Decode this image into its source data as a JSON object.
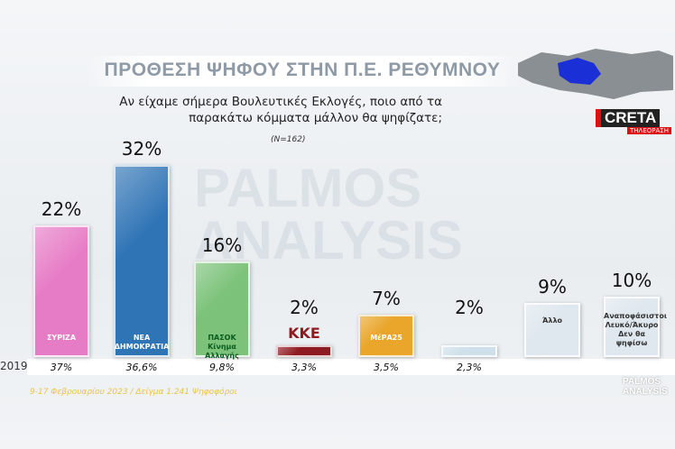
{
  "chart_data": {
    "type": "bar",
    "title": "ΠΡΟΘΕΣΗ ΨΗΦΟΥ ΣΤΗΝ Π.Ε. ΡΕΘΥΜΝΟΥ",
    "subtitle": "Αν είχαμε σήμερα Βουλευτικές Εκλογές, ποιο από τα παρακάτω κόμματα μάλλον θα ψηφίζατε;",
    "sample_note": "(Ν=162)",
    "watermark": "PALMOS ANALYSIS",
    "footnote": "9-17 Φεβρουαρίου 2023 / Δείγμα 1.241 Ψηφοφόροι",
    "brand": "PALMOS ANALYSIS",
    "channel": "CRETA",
    "channel_sub": "ΤΗΛΕΟΡΑΣΗ",
    "categories": [
      "ΣΥΡΙΖΑ",
      "ΝΕΑ ΔΗΜΟΚΡΑΤΙΑ",
      "ΠΑΣΟΚ Κίνημα Αλλαγής",
      "ΚΚΕ",
      "ΜέΡΑ25",
      null,
      "Άλλο",
      "Αναποφάσιστοι Λευκό/Άκυρο Δεν θα ψηφίσω"
    ],
    "series": [
      {
        "name": "2023",
        "values": [
          22,
          32,
          16,
          2,
          7,
          2,
          9,
          10
        ],
        "value_labels": [
          "22%",
          "32%",
          "16%",
          "2%",
          "7%",
          "2%",
          "9%",
          "10%"
        ],
        "colors": [
          "#e77cc6",
          "#2f74b5",
          "#7cc27a",
          "#8e1b22",
          "#e9a62a",
          "#cfe0ea",
          "#dfe8ee",
          "#dfe8ee"
        ]
      },
      {
        "name": "2019",
        "values": [
          37,
          36.6,
          9.8,
          3.3,
          3.5,
          2.3,
          null,
          null
        ],
        "value_labels": [
          "37%",
          "36,6%",
          "9,8%",
          "3,3%",
          "3,5%",
          "2,3%",
          null,
          null
        ]
      }
    ]
  }
}
